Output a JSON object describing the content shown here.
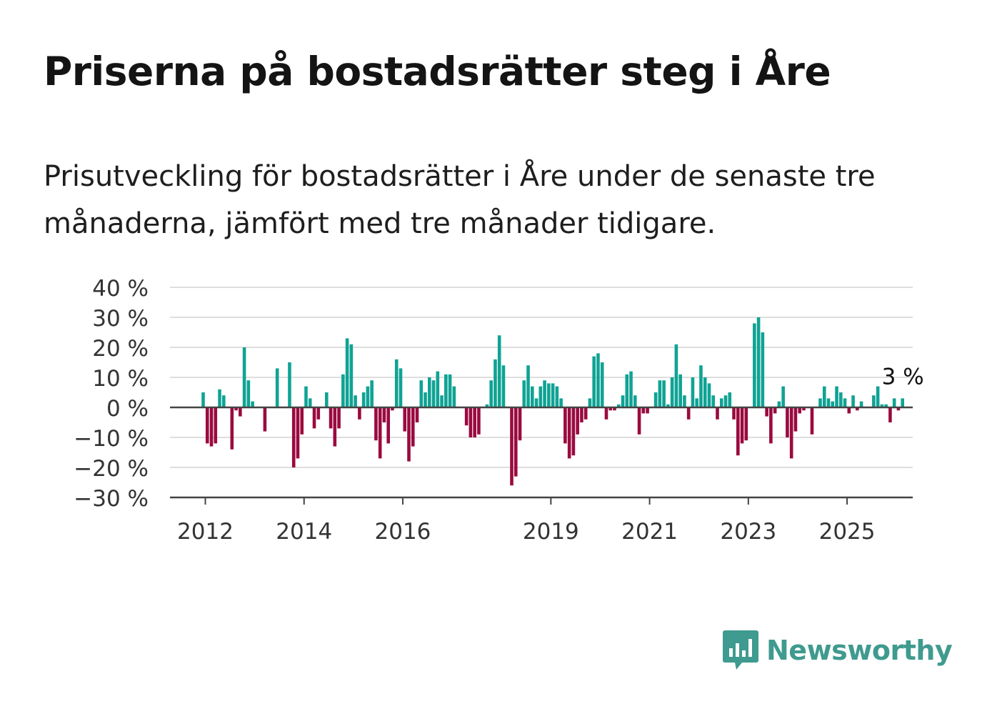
{
  "title": "Priserna på bostadsrätter steg i Åre",
  "subtitle": "Prisutveckling för bostadsrätter i Åre under de senaste tre månaderna, jämfört med tre månader tidigare.",
  "brand": {
    "name": "Newsworthy"
  },
  "colors": {
    "positive": "#0fa394",
    "negative": "#9a0a3f",
    "grid": "#dedede",
    "axis": "#444444",
    "brand": "#3f9a8f"
  },
  "chart_data": {
    "type": "bar",
    "x_start": "2012-01",
    "frequency": "monthly",
    "yticks": [
      40,
      30,
      20,
      10,
      0,
      -10,
      -20,
      -30
    ],
    "ytick_labels": [
      "40 %",
      "30 %",
      "20 %",
      "10 %",
      "0 %",
      "−10 %",
      "−20 %",
      "−30 %"
    ],
    "ylim": [
      -30,
      40
    ],
    "xticks": [
      "2012",
      "2014",
      "2016",
      "2019",
      "2021",
      "2023",
      "2025"
    ],
    "grid": true,
    "annotation": {
      "text": "3 %",
      "value": 3,
      "position": "last bar"
    },
    "values": [
      5,
      -12,
      -13,
      -12,
      6,
      4,
      0,
      -14,
      -1,
      -3,
      20,
      9,
      2,
      0,
      0,
      -8,
      0,
      0,
      13,
      0,
      0,
      15,
      -20,
      -17,
      -9,
      7,
      3,
      -7,
      -4,
      0,
      5,
      -7,
      -13,
      -7,
      11,
      23,
      21,
      4,
      -4,
      5,
      7,
      9,
      -11,
      -17,
      -5,
      -12,
      -1,
      16,
      13,
      -8,
      -18,
      -13,
      -5,
      9,
      5,
      10,
      9,
      12,
      4,
      11,
      11,
      7,
      0,
      0,
      -6,
      -10,
      -10,
      -9,
      0,
      1,
      9,
      16,
      24,
      14,
      0,
      -26,
      -23,
      -11,
      9,
      14,
      7,
      3,
      7,
      9,
      8,
      8,
      7,
      3,
      -12,
      -17,
      -16,
      -9,
      -5,
      -4,
      3,
      17,
      18,
      15,
      -4,
      -1,
      -1,
      1,
      4,
      11,
      12,
      4,
      -9,
      -2,
      -2,
      0,
      5,
      9,
      9,
      1,
      10,
      21,
      11,
      4,
      -4,
      10,
      3,
      14,
      10,
      8,
      4,
      -4,
      3,
      4,
      5,
      -4,
      -16,
      -12,
      -11,
      0,
      28,
      30,
      25,
      -3,
      -12,
      -2,
      2,
      7,
      -10,
      -17,
      -8,
      -2,
      -1,
      0,
      -9,
      0,
      3,
      7,
      3,
      2,
      7,
      5,
      3,
      -2,
      4,
      -1,
      2,
      0,
      0,
      4,
      7,
      1,
      1,
      -5,
      3,
      -1,
      3
    ]
  }
}
